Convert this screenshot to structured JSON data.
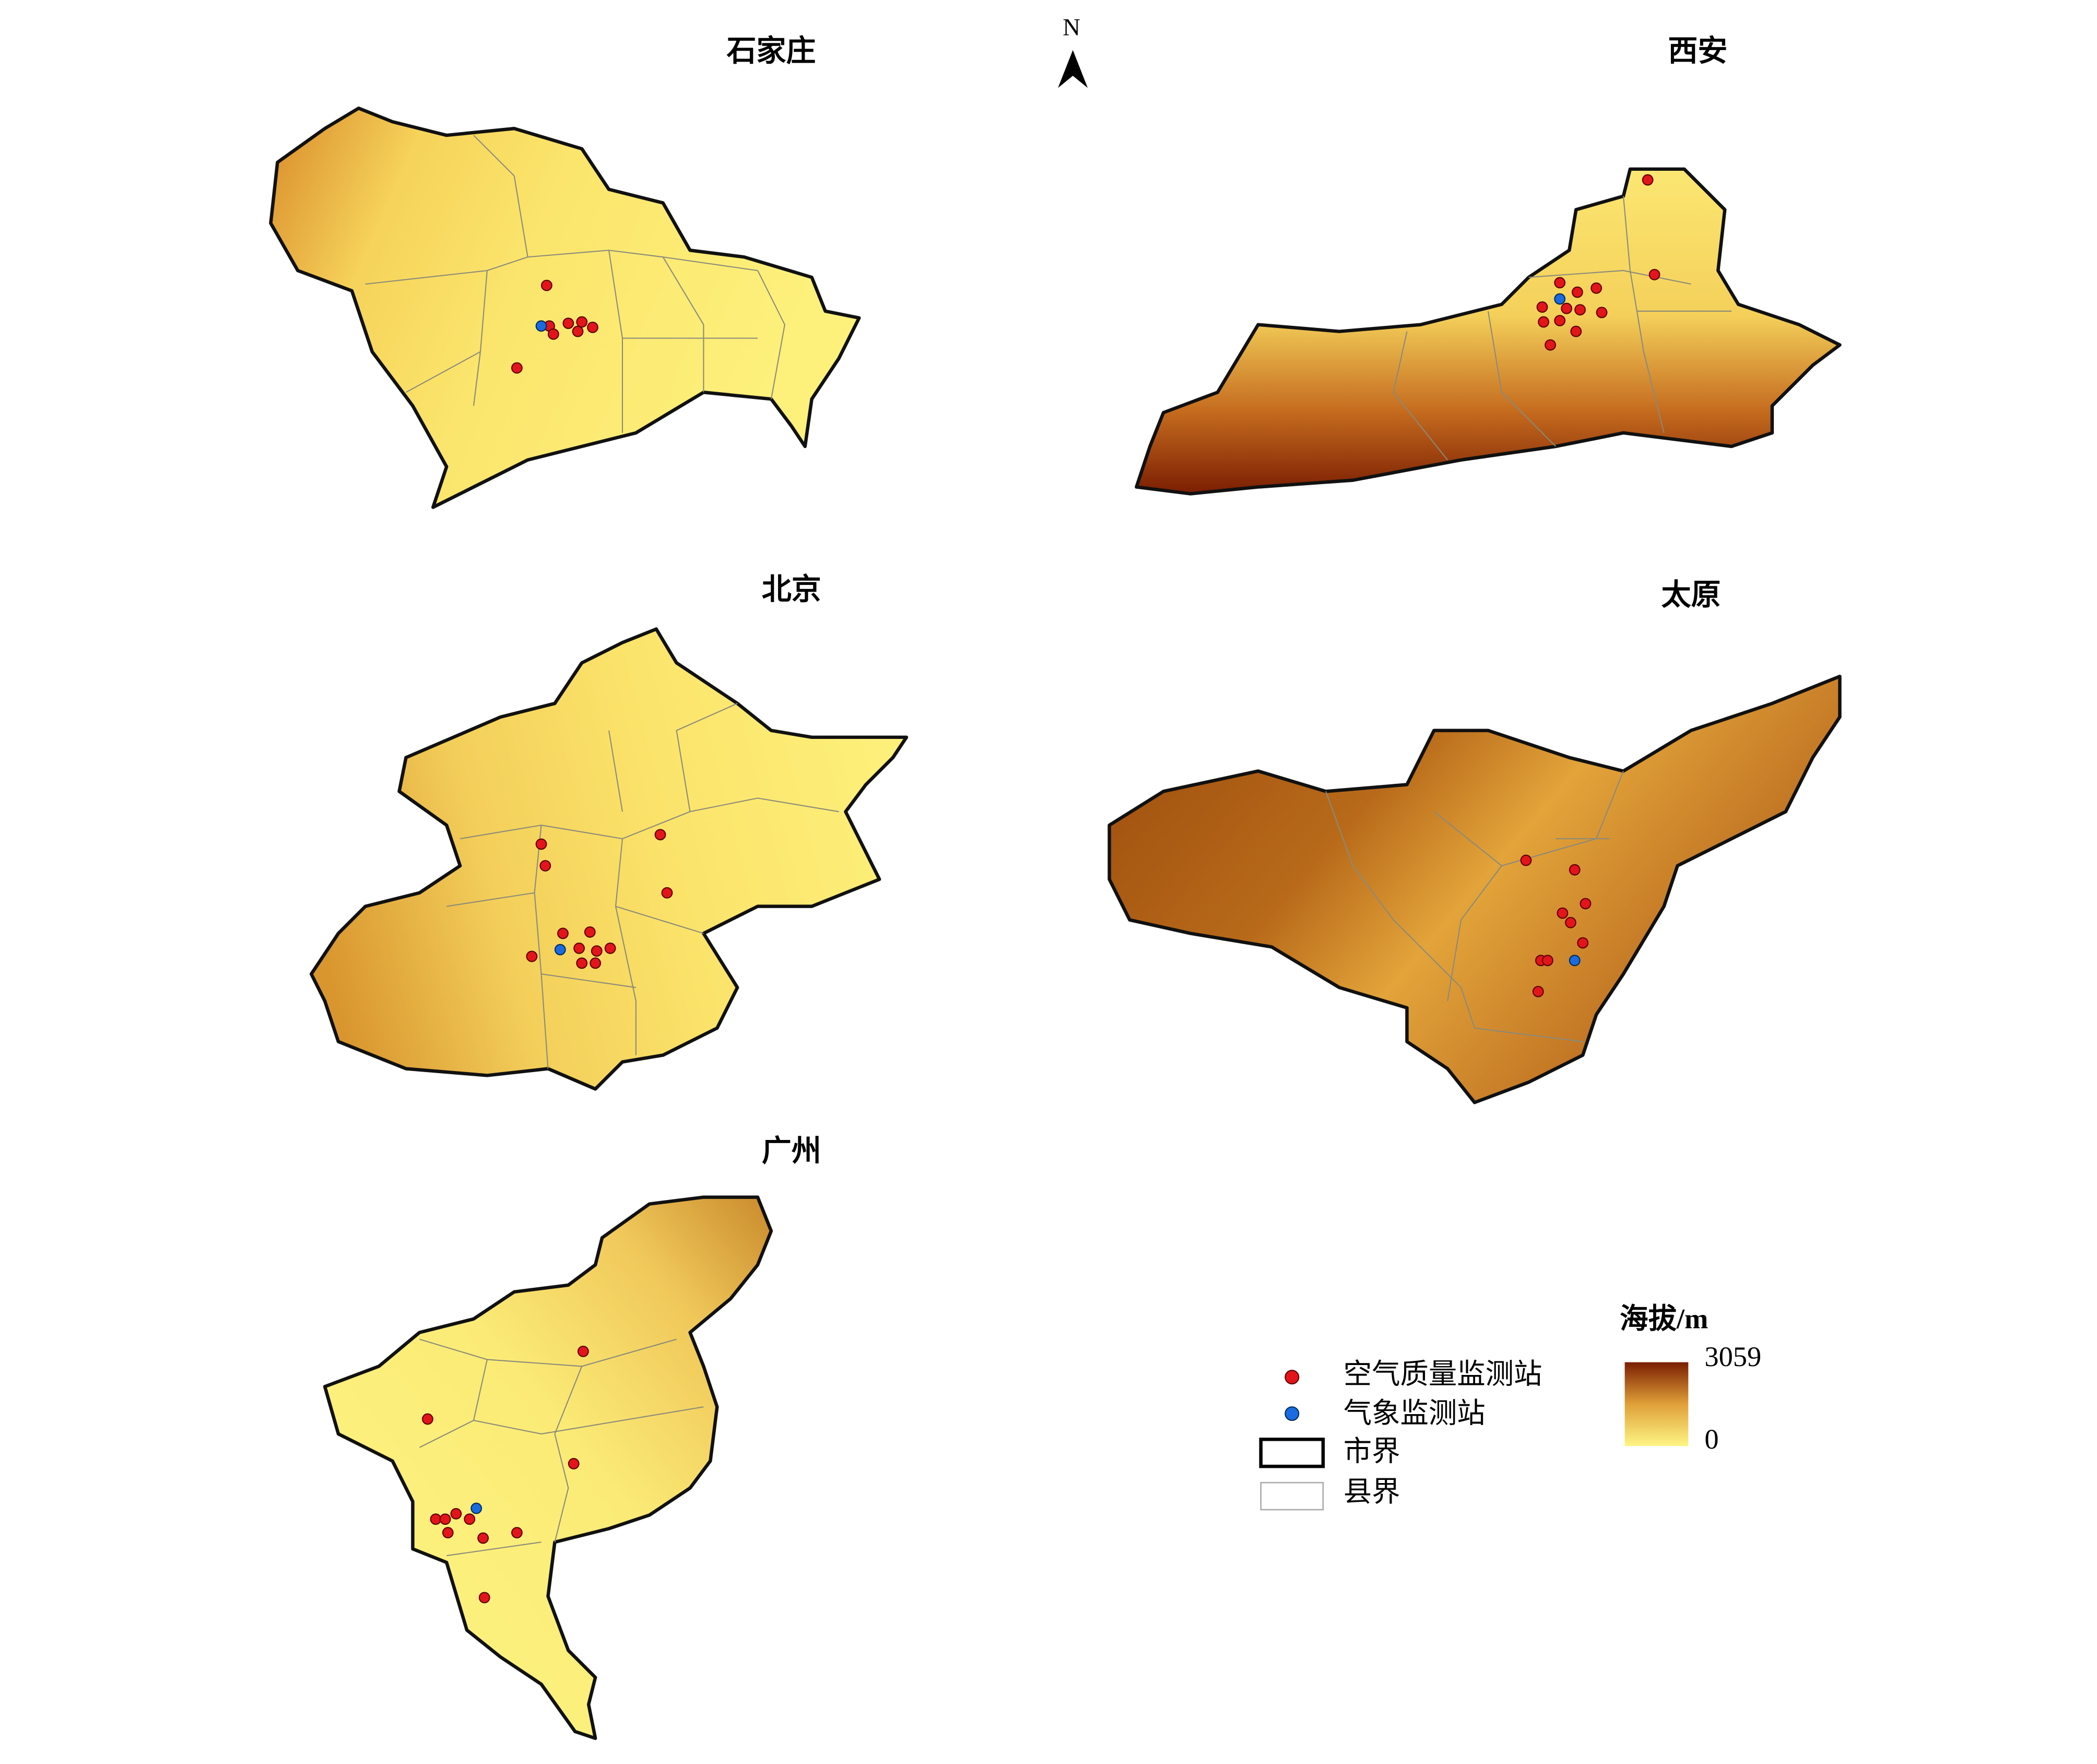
{
  "north": "N",
  "maps": [
    {
      "title": "石家庄"
    },
    {
      "title": "西安"
    },
    {
      "title": "北京"
    },
    {
      "title": "太原"
    },
    {
      "title": "广州"
    }
  ],
  "legend": {
    "items": [
      "空气质量监测站",
      "气象监测站",
      "市界",
      "县界"
    ],
    "elevation_title": "海拔/m",
    "elevation_max": 3059,
    "elevation_min": 0
  }
}
